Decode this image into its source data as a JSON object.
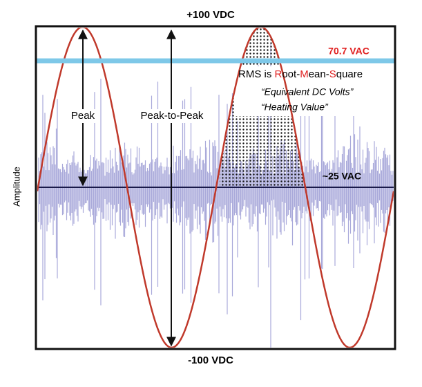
{
  "top_label": "+100 VDC",
  "bottom_label": "-100 VDC",
  "axis_label": "Amplitude",
  "rms_value": "70.7 VAC",
  "average_value": "~25 VAC",
  "peak_label": "Peak",
  "peak_to_peak_label": "Peak-to-Peak",
  "rms_definition": [
    "RMS is ",
    "R",
    "oot-",
    "M",
    "ean-",
    "S",
    "quare"
  ],
  "notes": [
    "“Equivalent DC Volts”",
    "“Heating Value”"
  ]
}
